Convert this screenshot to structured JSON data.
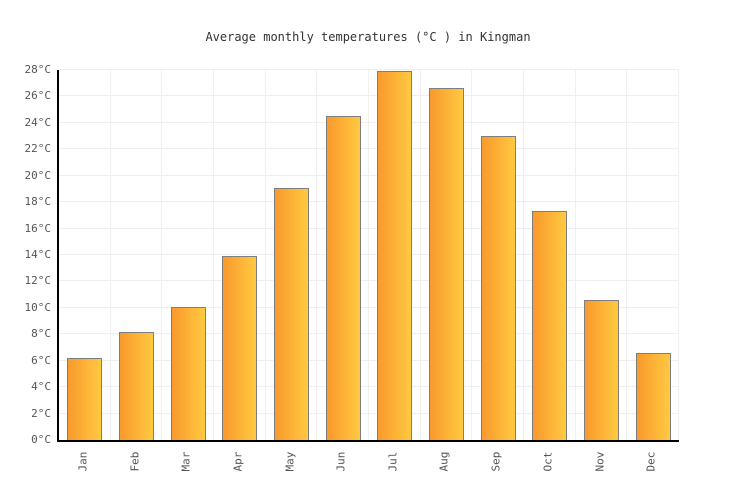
{
  "chart_data": {
    "type": "bar",
    "title": "Average monthly temperatures (°C ) in Kingman",
    "categories": [
      "Jan",
      "Feb",
      "Mar",
      "Apr",
      "May",
      "Jun",
      "Jul",
      "Aug",
      "Sep",
      "Oct",
      "Nov",
      "Dec"
    ],
    "values": [
      6.2,
      8.2,
      10.1,
      13.9,
      19.1,
      24.5,
      27.9,
      26.6,
      23.0,
      17.3,
      10.6,
      6.6
    ],
    "xlabel": "",
    "ylabel": "",
    "ylim": [
      0,
      28
    ],
    "ytick_step": 2,
    "yticks": [
      "0°C",
      "2°C",
      "4°C",
      "6°C",
      "8°C",
      "10°C",
      "12°C",
      "14°C",
      "16°C",
      "18°C",
      "20°C",
      "22°C",
      "24°C",
      "26°C",
      "28°C"
    ],
    "grid": true,
    "legend": false,
    "colors": {
      "bar_gradient_left": "#F9992D",
      "bar_gradient_right": "#FFC940",
      "bar_border": "#7E7E7E",
      "gridline": "#EFEFEF",
      "axis": "#000000",
      "tick_label": "#555555",
      "title": "#333333"
    }
  }
}
